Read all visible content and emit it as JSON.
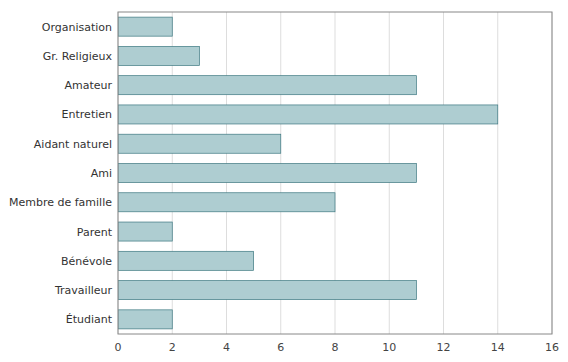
{
  "chart_data": {
    "type": "bar",
    "orientation": "horizontal",
    "categories": [
      "Organisation",
      "Gr. Religieux",
      "Amateur",
      "Entretien",
      "Aidant naturel",
      "Ami",
      "Membre de famille",
      "Parent",
      "Bénévole",
      "Travailleur",
      "Étudiant"
    ],
    "values": [
      2,
      3,
      11,
      14,
      6,
      11,
      8,
      2,
      5,
      11,
      2
    ],
    "color": "#aecdd1",
    "xlim": [
      0,
      16
    ],
    "xticks": [
      0,
      2,
      4,
      6,
      8,
      10,
      12,
      14,
      16
    ],
    "grid": true
  }
}
